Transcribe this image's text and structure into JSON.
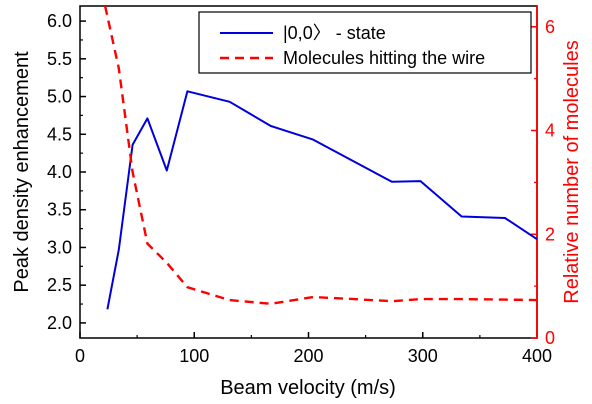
{
  "chart_data": {
    "type": "line",
    "xlabel": "Beam velocity  (m/s)",
    "ylabel_left": "Peak density enhancement",
    "ylabel_right": "Relative number of molecules",
    "xlim": [
      0,
      400
    ],
    "ylim_left": [
      1.8,
      6.2
    ],
    "ylim_right": [
      0,
      6.4
    ],
    "x_ticks": [
      0,
      100,
      200,
      300,
      400
    ],
    "y_ticks_left": [
      2.0,
      2.5,
      3.0,
      3.5,
      4.0,
      4.5,
      5.0,
      5.5,
      6.0
    ],
    "y_ticks_right": [
      0,
      2,
      4,
      6
    ],
    "grid": false,
    "legend_position": "top-right",
    "colors": {
      "left_axis": "#000000",
      "right_axis": "#ff0000",
      "series_state": "#0000dd",
      "series_molecules": "#ff0000"
    },
    "series": [
      {
        "name": "|0,0〉  - state",
        "axis": "left",
        "style": "solid",
        "x": [
          24,
          34,
          46,
          59,
          76,
          94,
          131,
          167,
          204,
          273,
          298,
          334,
          372,
          400
        ],
        "y": [
          2.18,
          2.97,
          4.36,
          4.71,
          4.02,
          5.07,
          4.93,
          4.61,
          4.43,
          3.87,
          3.88,
          3.41,
          3.39,
          3.11
        ]
      },
      {
        "name": "Molecules hitting the wire",
        "axis": "right",
        "style": "dashed",
        "x": [
          22,
          34,
          46,
          59,
          76,
          94,
          131,
          167,
          204,
          240,
          273,
          298,
          334,
          372,
          400
        ],
        "y": [
          6.4,
          5.2,
          3.2,
          1.82,
          1.45,
          0.98,
          0.73,
          0.66,
          0.79,
          0.75,
          0.71,
          0.75,
          0.75,
          0.74,
          0.73
        ]
      }
    ]
  }
}
